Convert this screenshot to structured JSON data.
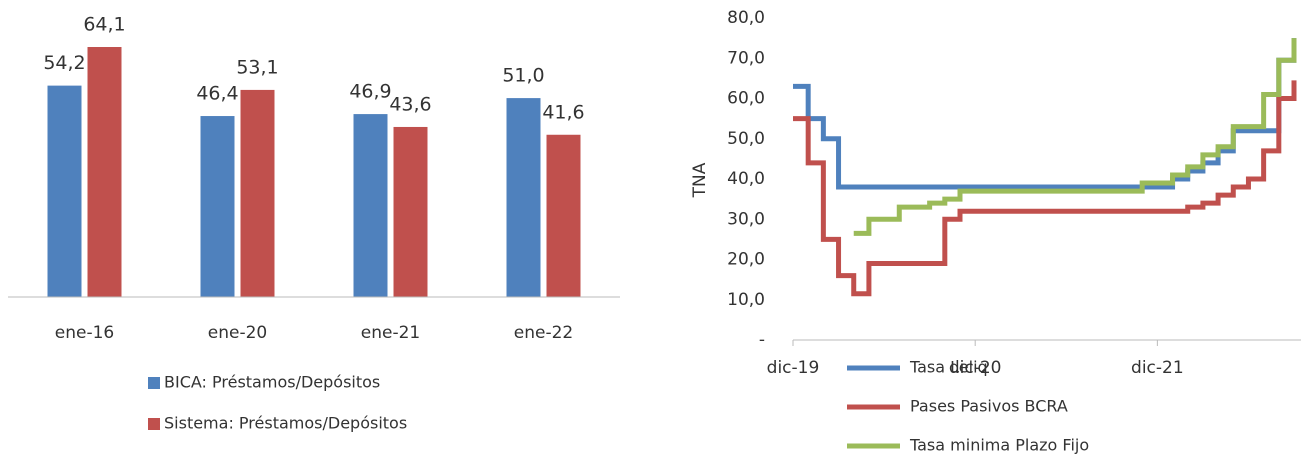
{
  "chart_data": [
    {
      "type": "bar",
      "categories": [
        "ene-16",
        "ene-20",
        "ene-21",
        "ene-22"
      ],
      "ylim": [
        0,
        70
      ],
      "series": [
        {
          "name": "BICA: Préstamos/Depósitos",
          "color": "#4f81bd",
          "values": [
            54.2,
            46.4,
            46.9,
            51.0
          ],
          "value_labels": [
            "54,2",
            "46,4",
            "46,9",
            "51,0"
          ]
        },
        {
          "name": "Sistema: Préstamos/Depósitos",
          "color": "#c0504d",
          "values": [
            64.1,
            53.1,
            43.6,
            41.6
          ],
          "value_labels": [
            "64,1",
            "53,1",
            "43,6",
            "41,6"
          ]
        }
      ]
    },
    {
      "type": "line",
      "y_label": "TNA",
      "categories": [
        "dic-19",
        null,
        null,
        null,
        null,
        null,
        null,
        null,
        null,
        null,
        null,
        null,
        "dic-20",
        null,
        null,
        null,
        null,
        null,
        null,
        null,
        null,
        null,
        null,
        null,
        "dic-21",
        null,
        null,
        null,
        null,
        null,
        null,
        null,
        null,
        null
      ],
      "ylim": [
        0,
        80
      ],
      "yticks": [
        {
          "value": 0,
          "label": "-"
        },
        {
          "value": 10,
          "label": "10,0"
        },
        {
          "value": 20,
          "label": "20,0"
        },
        {
          "value": 30,
          "label": "30,0"
        },
        {
          "value": 40,
          "label": "40,0"
        },
        {
          "value": 50,
          "label": "50,0"
        },
        {
          "value": 60,
          "label": "60,0"
        },
        {
          "value": 70,
          "label": "70,0"
        },
        {
          "value": 80,
          "label": "80,0"
        }
      ],
      "series": [
        {
          "name": "Tasa Leliq",
          "color": "#4f81bd",
          "values": [
            63,
            55,
            50,
            38,
            38,
            38,
            38,
            38,
            38,
            38,
            38,
            38,
            38,
            38,
            38,
            38,
            38,
            38,
            38,
            38,
            38,
            38,
            38,
            38,
            38,
            40,
            42,
            44,
            47,
            52,
            52,
            52,
            69.5,
            75
          ]
        },
        {
          "name": "Pases Pasivos BCRA",
          "color": "#c0504d",
          "values": [
            55,
            44,
            25,
            16,
            11.5,
            19,
            19,
            19,
            19,
            19,
            30,
            32,
            32,
            32,
            32,
            32,
            32,
            32,
            32,
            32,
            32,
            32,
            32,
            32,
            32,
            32,
            33,
            34,
            36,
            38,
            40,
            47,
            60,
            64.5
          ]
        },
        {
          "name": "Tasa minima Plazo Fijo",
          "color": "#9bbb59",
          "values": [
            null,
            null,
            null,
            null,
            26.5,
            30,
            30,
            33,
            33,
            34,
            35,
            37,
            37,
            37,
            37,
            37,
            37,
            37,
            37,
            37,
            37,
            37,
            37,
            39,
            39,
            41,
            43,
            46,
            48,
            53,
            53,
            61,
            69.5,
            75
          ]
        }
      ]
    }
  ]
}
